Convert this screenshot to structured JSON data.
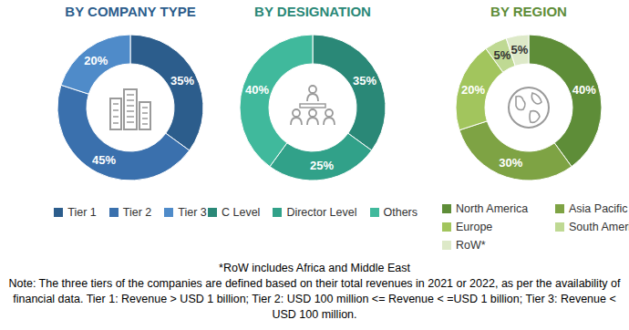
{
  "chart_data": [
    {
      "type": "pie",
      "title": "BY COMPANY TYPE",
      "categories": [
        "Tier 1",
        "Tier 2",
        "Tier 3"
      ],
      "values": [
        35,
        45,
        20
      ],
      "value_labels": [
        "35%",
        "45%",
        "20%"
      ],
      "colors": [
        "#2c5d8c",
        "#3a70ad",
        "#4f8bc9"
      ],
      "data_labels": true,
      "legend": "bottom"
    },
    {
      "type": "pie",
      "title": "BY DESIGNATION",
      "categories": [
        "C Level",
        "Director Level",
        "Others"
      ],
      "values": [
        35,
        25,
        40
      ],
      "value_labels": [
        "35%",
        "25%",
        "40%"
      ],
      "colors": [
        "#2a8877",
        "#31a189",
        "#40b99c"
      ],
      "data_labels": true,
      "legend": "bottom"
    },
    {
      "type": "pie",
      "title": "BY REGION",
      "categories": [
        "North America",
        "Asia Pacific",
        "Europe",
        "South America",
        "RoW*"
      ],
      "values": [
        40,
        30,
        20,
        5,
        5
      ],
      "value_labels": [
        "40%",
        "30%",
        "20%",
        "5%",
        "5%"
      ],
      "colors": [
        "#5e8d38",
        "#7ea344",
        "#a2c55d",
        "#bfd993",
        "#dde9c8"
      ],
      "data_labels": true,
      "legend": "bottom"
    }
  ],
  "notes": [
    "*RoW includes Africa and Middle East",
    "Note: The three tiers of the companies are defined based on their total revenues in 2021 or 2022, as per the availability of financial data. Tier 1: Revenue > USD 1 billion; Tier 2: USD 100 million <= Revenue < =USD 1 billion; Tier 3: Revenue < USD 100 million."
  ]
}
